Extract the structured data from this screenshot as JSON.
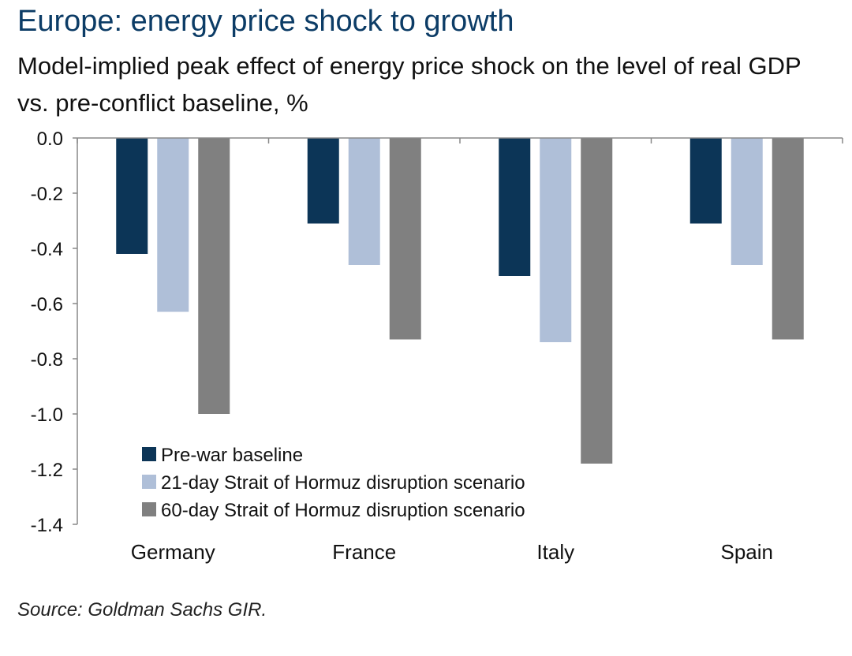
{
  "colors": {
    "title": "#0c3c66",
    "axis": "#888888",
    "series": [
      "#0c3557",
      "#afbfd8",
      "#808080"
    ]
  },
  "chart_data": {
    "type": "bar",
    "title": "Europe: energy price shock to growth",
    "subtitle": "Model-implied peak effect of energy price shock on the level of real GDP vs. pre-conflict baseline, %",
    "xlabel": "",
    "ylabel": "",
    "categories": [
      "Germany",
      "France",
      "Italy",
      "Spain"
    ],
    "series": [
      {
        "name": "Pre-war baseline",
        "values": [
          -0.42,
          -0.31,
          -0.5,
          -0.31
        ]
      },
      {
        "name": "21-day Strait of Hormuz disruption scenario",
        "values": [
          -0.63,
          -0.46,
          -0.74,
          -0.46
        ]
      },
      {
        "name": "60-day Strait of Hormuz disruption scenario",
        "values": [
          -1.0,
          -0.73,
          -1.18,
          -0.73
        ]
      }
    ],
    "ylim": [
      -1.4,
      0.0
    ],
    "yticks": [
      "0.0",
      "-0.2",
      "-0.4",
      "-0.6",
      "-0.8",
      "-1.0",
      "-1.2",
      "-1.4"
    ],
    "ytick_values": [
      0.0,
      -0.2,
      -0.4,
      -0.6,
      -0.8,
      -1.0,
      -1.2,
      -1.4
    ],
    "legend_position": "bottom-left inside plot",
    "grid": false
  },
  "source": "Source: Goldman Sachs GIR."
}
